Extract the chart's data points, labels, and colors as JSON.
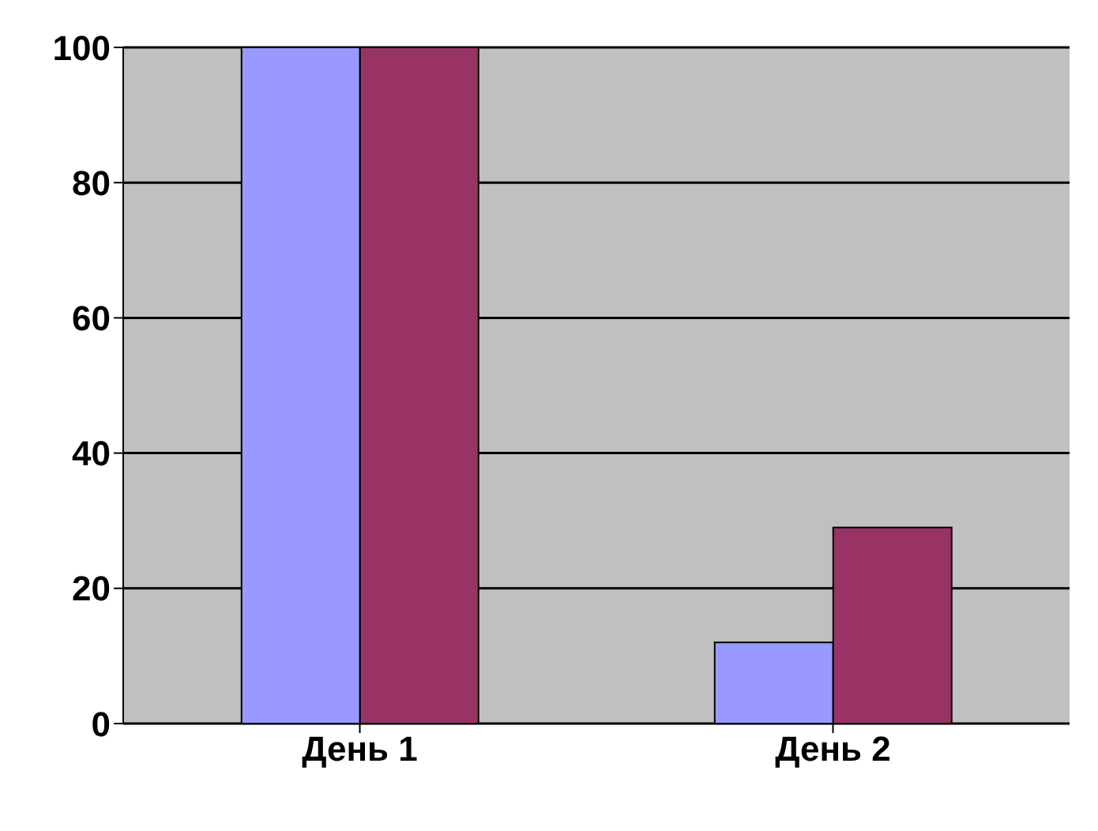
{
  "chart_data": {
    "type": "bar",
    "categories": [
      "День 1",
      "День 2"
    ],
    "series": [
      {
        "color": "#9999ff",
        "values": [
          100,
          12
        ]
      },
      {
        "color": "#993366",
        "values": [
          100,
          29
        ]
      }
    ],
    "ylim": [
      0,
      100
    ],
    "yticks": [
      0,
      20,
      40,
      60,
      80,
      100
    ],
    "grid": "y"
  }
}
